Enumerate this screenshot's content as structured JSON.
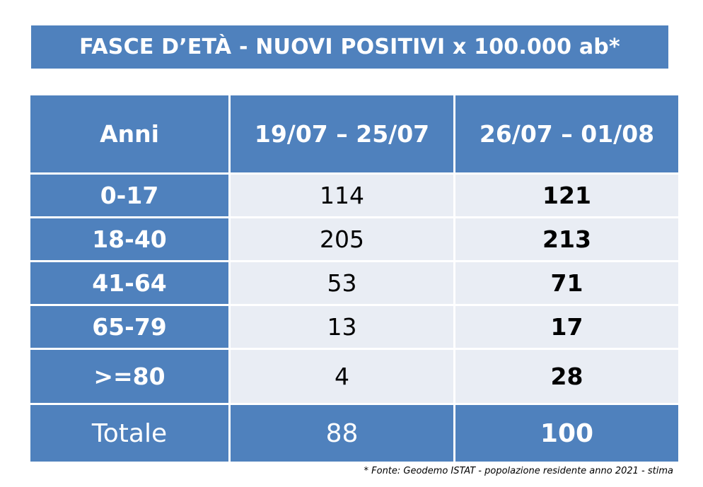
{
  "title": "FASCE D’ETÀ - NUOVI POSITIVI x 100.000 ab*",
  "table": {
    "headers": [
      "Anni",
      "19/07 – 25/07",
      "26/07 – 01/08"
    ],
    "rows": [
      [
        "0-17",
        "114",
        "121"
      ],
      [
        "18-40",
        "205",
        "213"
      ],
      [
        "41-64",
        "53",
        "71"
      ],
      [
        "65-79",
        "13",
        "17"
      ],
      [
        ">=80",
        "4",
        "28"
      ]
    ],
    "total": [
      "Totale",
      "88",
      "100"
    ]
  },
  "footnote": "* Fonte: Geodemo ISTAT - popolazione residente anno 2021 - stima",
  "colors": {
    "header_blue": "#4f81bd",
    "cell_light": "#e9edf4"
  }
}
